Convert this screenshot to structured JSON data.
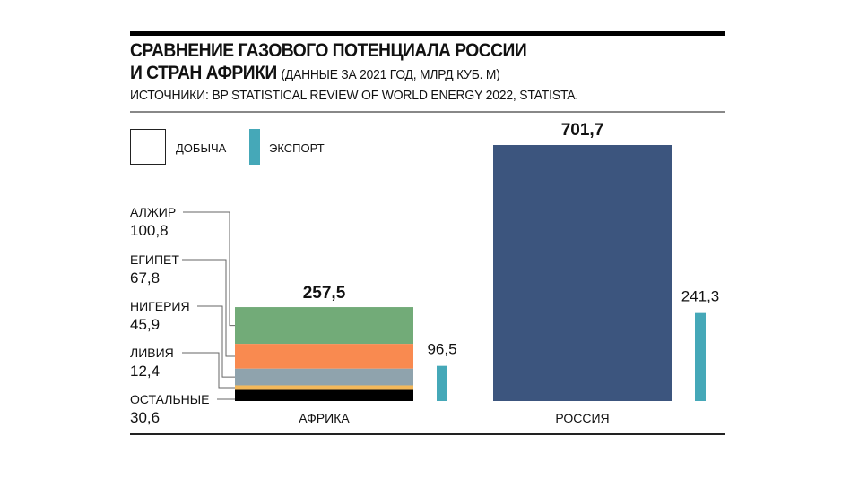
{
  "title_line1": "СРАВНЕНИЕ ГАЗОВОГО ПОТЕНЦИАЛА РОССИИ",
  "title_line2": "И СТРАН АФРИКИ",
  "subtitle": "(ДАННЫЕ ЗА 2021 ГОД, МЛРД КУБ. М)",
  "source": "ИСТОЧНИКИ: BP STATISTICAL REVIEW OF WORLD ENERGY 2022, STATISTA.",
  "legend": {
    "production": "ДОБЫЧА",
    "export": "ЭКСПОРТ"
  },
  "colors": {
    "export": "#45a8b8",
    "russia": "#3c557e"
  },
  "chart_data": {
    "type": "bar",
    "subtype": "stacked",
    "unit": "млрд куб. м",
    "categories": [
      "АФРИКА",
      "РОССИЯ"
    ],
    "production_totals": [
      "257,5",
      "701,7"
    ],
    "export_labels": [
      "96,5",
      "241,3"
    ],
    "production_values": [
      257.5,
      701.7
    ],
    "export_values": [
      96.5,
      241.3
    ],
    "africa_segments": [
      {
        "name": "АЛЖИР",
        "value": 100.8,
        "label": "100,8",
        "color": "#72ab78"
      },
      {
        "name": "ЕГИПЕТ",
        "value": 67.8,
        "label": "67,8",
        "color": "#f98a50"
      },
      {
        "name": "НИГЕРИЯ",
        "value": 45.9,
        "label": "45,9",
        "color": "#8fa3ad"
      },
      {
        "name": "ЛИВИЯ",
        "value": 12.4,
        "label": "12,4",
        "color": "#f3b85a"
      },
      {
        "name": "ОСТАЛЬНЫЕ",
        "value": 30.6,
        "label": "30,6",
        "color": "#000000"
      }
    ],
    "ylim": [
      0,
      701.7
    ],
    "legend_position": "top-left"
  }
}
